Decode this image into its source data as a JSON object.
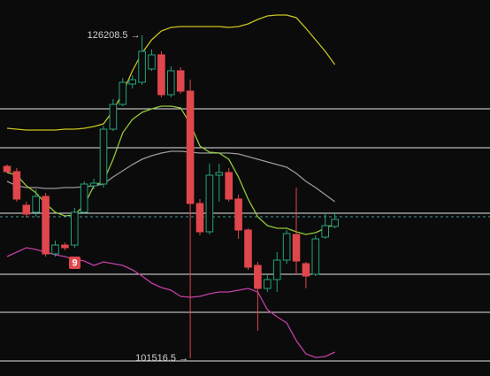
{
  "chart_data": {
    "type": "candlestick",
    "ylim": [
      100163,
      128914
    ],
    "up_color": "#26a17b",
    "down_color": "#e0474c",
    "open": [
      116196,
      115790,
      113219,
      112678,
      113896,
      109498,
      110175,
      110175,
      112678,
      114707,
      114843,
      119037,
      120931,
      122487,
      122623,
      123637,
      124720,
      121675,
      123502,
      121946,
      113354,
      111190,
      115519,
      115722,
      113693,
      111325,
      108619,
      106860,
      107537,
      109025,
      110987,
      108754,
      107942,
      110784,
      111596
    ],
    "high": [
      116331,
      116060,
      113490,
      114437,
      114166,
      110513,
      110378,
      113016,
      115046,
      115249,
      119308,
      121337,
      122961,
      123164,
      126208.5,
      125126,
      124990,
      123840,
      123773,
      122825,
      113693,
      116399,
      116399,
      116060,
      114031,
      111460,
      108890,
      107942,
      109634,
      111325,
      114572,
      108890,
      110919,
      112678,
      112678
    ],
    "low": [
      115655,
      113490,
      112272,
      112340,
      109295,
      109295,
      109769,
      109972,
      112543,
      114437,
      114572,
      118902,
      120796,
      122149,
      122420,
      123502,
      121472,
      121472,
      121743,
      101516.5,
      110919,
      110987,
      113490,
      113490,
      110648,
      108281,
      103613,
      106590,
      106590,
      108754,
      107942,
      106860,
      107807,
      110648,
      111460
    ],
    "close": [
      115790,
      113693,
      112543,
      113896,
      109498,
      110175,
      109972,
      112678,
      114843,
      114910,
      119037,
      120931,
      122623,
      122825,
      124990,
      124720,
      121675,
      123502,
      121946,
      113354,
      111190,
      115519,
      115722,
      113693,
      111325,
      108484,
      106860,
      107537,
      109025,
      111054,
      108957,
      107807,
      110648,
      111663,
      112137
    ],
    "lines": [
      {
        "color": "#c9c41f",
        "values": [
          119105,
          119037,
          118969,
          118969,
          118969,
          118969,
          119037,
          119037,
          119105,
          119240,
          119443,
          120458,
          121811,
          123502,
          124855,
          125870,
          126546,
          126817,
          126884,
          126884,
          126884,
          126884,
          126884,
          126817,
          126884,
          127087,
          127426,
          127696,
          127764,
          127764,
          127561,
          126749,
          125870,
          124990,
          123976
        ]
      },
      {
        "color": "#9a9a9a",
        "values": [
          115046,
          114707,
          114572,
          114572,
          114505,
          114505,
          114572,
          114572,
          114640,
          114707,
          114843,
          115384,
          115858,
          116331,
          116737,
          117008,
          117211,
          117346,
          117346,
          117278,
          117211,
          117211,
          117211,
          117211,
          117143,
          116940,
          116737,
          116534,
          116331,
          116128,
          115655,
          115046,
          114572,
          114031,
          113490
        ]
      },
      {
        "color": "#93c83a",
        "values": [
          115722,
          115519,
          114707,
          114166,
          113354,
          112678,
          112407,
          112475,
          113219,
          114707,
          115046,
          116737,
          118766,
          119781,
          120322,
          120593,
          120796,
          120796,
          120661,
          119443,
          117752,
          117278,
          117211,
          116737,
          115384,
          113693,
          112340,
          111663,
          111460,
          111460,
          111190,
          110987,
          111122,
          111460,
          111799
        ]
      },
      {
        "color": "#c23fa5",
        "values": [
          109295,
          109634,
          109972,
          109837,
          109634,
          109431,
          109295,
          109093,
          108957,
          108619,
          108890,
          108754,
          108619,
          108281,
          107807,
          107266,
          106928,
          106725,
          106251,
          106184,
          106251,
          106454,
          106590,
          106590,
          106725,
          106860,
          106590,
          105236,
          104695,
          104222,
          102869,
          101854,
          101583,
          101651,
          101989
        ]
      }
    ],
    "levels": [
      120593,
      117616,
      112610,
      107942,
      105033,
      101313
    ],
    "last_price": 112340,
    "last_price_color": "#3f9f9a",
    "high_label": "126208.5 →",
    "low_label": "101516.5 →",
    "marker": "9"
  }
}
